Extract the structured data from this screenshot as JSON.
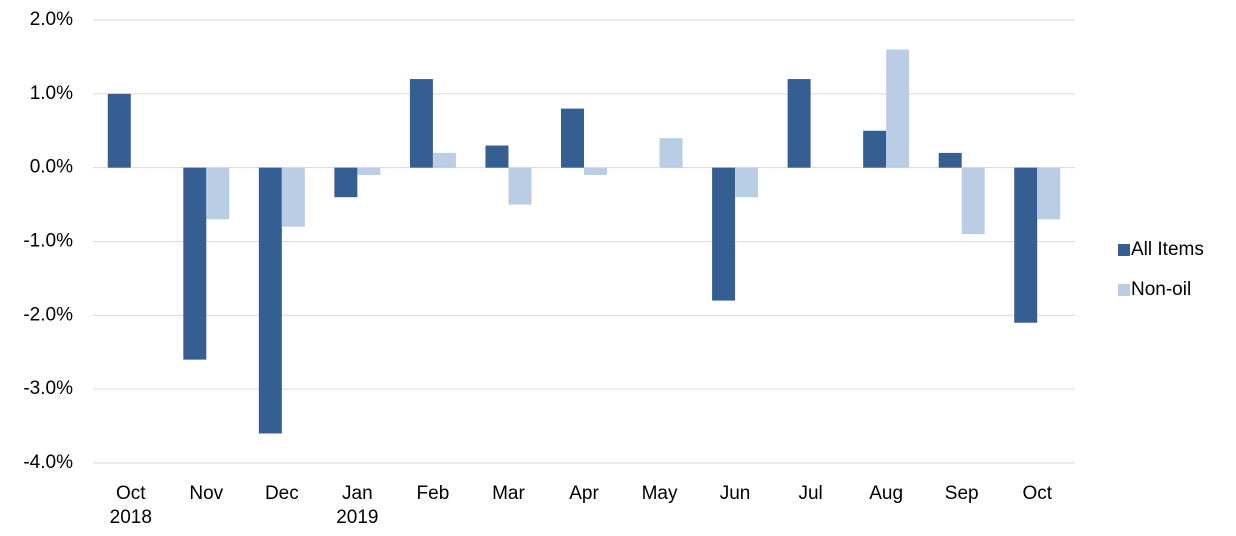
{
  "chart_data": {
    "type": "bar",
    "categories": [
      "Oct\n2018",
      "Nov",
      "Dec",
      "Jan\n2019",
      "Feb",
      "Mar",
      "Apr",
      "May",
      "Jun",
      "Jul",
      "Aug",
      "Sep",
      "Oct"
    ],
    "series": [
      {
        "name": "All Items",
        "color": "#355f93",
        "values": [
          1.0,
          -2.6,
          -3.6,
          -0.4,
          1.2,
          0.3,
          0.8,
          null,
          -1.8,
          1.2,
          0.5,
          0.2,
          -2.1
        ]
      },
      {
        "name": "Non-oil",
        "color": "#b9cde5",
        "values": [
          null,
          -0.7,
          -0.8,
          -0.1,
          0.2,
          -0.5,
          -0.1,
          0.4,
          -0.4,
          null,
          1.6,
          -0.9,
          -0.7
        ]
      }
    ],
    "ylim": [
      -4,
      2
    ],
    "yticks": [
      {
        "value": -4,
        "label": "-4.0%"
      },
      {
        "value": -3,
        "label": "-3.0%"
      },
      {
        "value": -2,
        "label": "-2.0%"
      },
      {
        "value": -1,
        "label": "-1.0%"
      },
      {
        "value": 0,
        "label": "0.0%"
      },
      {
        "value": 1,
        "label": "1.0%"
      },
      {
        "value": 2,
        "label": "2.0%"
      }
    ],
    "grid": true,
    "legend": "right"
  }
}
